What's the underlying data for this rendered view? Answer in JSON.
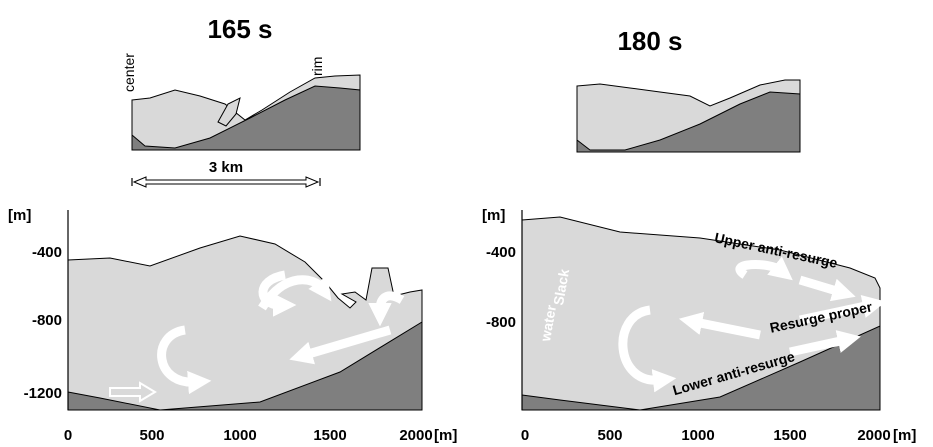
{
  "panels": [
    {
      "title": "165 s",
      "labels": [
        "center",
        "rim"
      ],
      "scale": "3 km"
    },
    {
      "title": "180 s"
    }
  ],
  "sections": [
    {
      "y_unit": "[m]",
      "yticks": [
        "-400",
        "-800",
        "-1200"
      ],
      "x_unit": "[m]",
      "xticks": [
        "0",
        "500",
        "1000",
        "1500",
        "2000"
      ]
    },
    {
      "y_unit": "[m]",
      "yticks": [
        "-400",
        "-800"
      ],
      "x_unit": "[m]",
      "xticks": [
        "0",
        "500",
        "1000",
        "1500",
        "2000"
      ],
      "annotations": [
        "Slack",
        "water",
        "Upper anti-resurge",
        "Resurge proper",
        "Lower anti-resurge"
      ]
    }
  ]
}
